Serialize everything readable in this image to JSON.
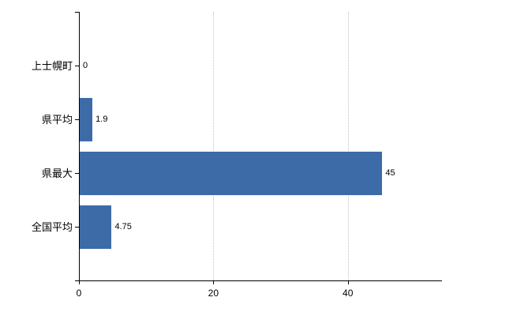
{
  "chart_data": {
    "type": "bar",
    "orientation": "horizontal",
    "categories": [
      "上士幌町",
      "県平均",
      "県最大",
      "全国平均"
    ],
    "values": [
      0,
      1.9,
      45,
      4.75
    ],
    "value_labels": [
      "0",
      "1.9",
      "45",
      "4.75"
    ],
    "x_ticks": [
      0,
      20,
      40
    ],
    "x_tick_labels": [
      "0",
      "20",
      "40"
    ],
    "xlim": [
      0,
      54
    ],
    "grid": "dotted-vertical",
    "legend": "none",
    "title": "",
    "colors": {
      "bar": "#3c6ba8",
      "grid": "#bfbfbf",
      "axis": "#000000",
      "background": "#ffffff",
      "text": "#000000"
    }
  }
}
